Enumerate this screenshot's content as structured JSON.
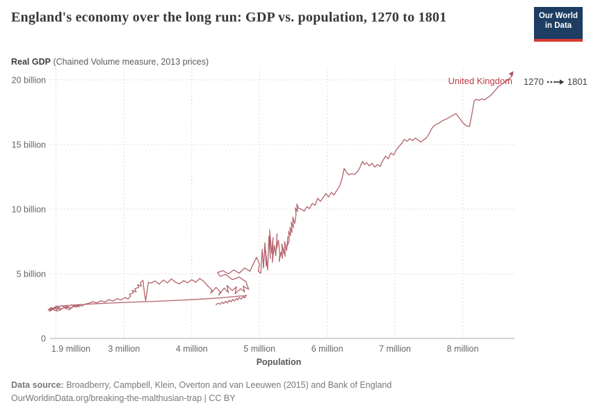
{
  "header": {
    "title": "England's economy over the long run: GDP vs. population, 1270 to 1801",
    "subtitle_bold": "Real GDP",
    "subtitle_rest": " (Chained Volume measure, 2013 prices)",
    "logo_line1": "Our World",
    "logo_line2": "in Data"
  },
  "timeline": {
    "start": "1270",
    "end": "1801"
  },
  "footer": {
    "source_label": "Data source:",
    "source_text": " Broadberry, Campbell, Klein, Overton and van Leeuwen (2015) and Bank of England",
    "link": "OurWorldinData.org/breaking-the-malthusian-trap",
    "license": " | CC BY"
  },
  "colors": {
    "line": "#a4454f",
    "entity_label": "#c23c46",
    "logo_bg": "#1d3d63",
    "logo_red": "#d93a34",
    "grid": "#dcdcdc",
    "axis_text": "#666666",
    "axis_line": "#a8a8a8"
  },
  "chart_data": {
    "type": "line",
    "title": "England's economy over the long run: GDP vs. population, 1270 to 1801",
    "xlabel": "Population",
    "ylabel": "Real GDP (Chained Volume measure, 2013 prices)",
    "x_unit": "million people",
    "y_unit": "billion (2013 prices)",
    "xlim": [
      1.8,
      8.9
    ],
    "ylim": [
      0,
      20
    ],
    "grid": true,
    "legend_position": "end-of-line-label",
    "x_ticks": [
      {
        "value": 1.9,
        "label": "1.9 million"
      },
      {
        "value": 3,
        "label": "3 million"
      },
      {
        "value": 4,
        "label": "4 million"
      },
      {
        "value": 5,
        "label": "5 million"
      },
      {
        "value": 6,
        "label": "6 million"
      },
      {
        "value": 7,
        "label": "7 million"
      },
      {
        "value": 8,
        "label": "8 million"
      }
    ],
    "y_ticks": [
      {
        "value": 0,
        "label": "0"
      },
      {
        "value": 5,
        "label": "5 billion"
      },
      {
        "value": 10,
        "label": "10 billion"
      },
      {
        "value": 15,
        "label": "15 billion"
      },
      {
        "value": 20,
        "label": "20 billion"
      }
    ],
    "series": [
      {
        "name": "United Kingdom",
        "start_year": 1270,
        "end_year": 1801,
        "points": [
          [
            4.36,
            2.62
          ],
          [
            4.39,
            2.73
          ],
          [
            4.42,
            2.65
          ],
          [
            4.45,
            2.82
          ],
          [
            4.47,
            2.7
          ],
          [
            4.5,
            2.88
          ],
          [
            4.53,
            2.75
          ],
          [
            4.55,
            2.95
          ],
          [
            4.58,
            2.83
          ],
          [
            4.6,
            3.02
          ],
          [
            4.63,
            2.9
          ],
          [
            4.66,
            3.1
          ],
          [
            4.68,
            2.98
          ],
          [
            4.7,
            3.18
          ],
          [
            4.73,
            3.05
          ],
          [
            4.76,
            3.25
          ],
          [
            4.78,
            3.12
          ],
          [
            4.8,
            3.35
          ],
          [
            4.81,
            3.3
          ],
          [
            4.7,
            3.28
          ],
          [
            4.45,
            3.15
          ],
          [
            4.15,
            3.05
          ],
          [
            3.8,
            2.95
          ],
          [
            3.45,
            2.87
          ],
          [
            3.1,
            2.8
          ],
          [
            2.8,
            2.74
          ],
          [
            2.55,
            2.68
          ],
          [
            2.35,
            2.62
          ],
          [
            2.15,
            2.55
          ],
          [
            2.0,
            2.48
          ],
          [
            1.95,
            2.35
          ],
          [
            1.88,
            2.2
          ],
          [
            1.93,
            2.42
          ],
          [
            1.9,
            2.1
          ],
          [
            1.97,
            2.3
          ],
          [
            1.92,
            2.18
          ],
          [
            2.0,
            2.45
          ],
          [
            1.94,
            2.25
          ],
          [
            2.02,
            2.12
          ],
          [
            1.98,
            2.38
          ],
          [
            2.05,
            2.22
          ],
          [
            2.0,
            2.5
          ],
          [
            2.08,
            2.3
          ],
          [
            2.04,
            2.15
          ],
          [
            2.12,
            2.4
          ],
          [
            2.08,
            2.55
          ],
          [
            2.15,
            2.28
          ],
          [
            2.11,
            2.45
          ],
          [
            2.18,
            2.33
          ],
          [
            2.14,
            2.52
          ],
          [
            2.22,
            2.38
          ],
          [
            2.18,
            2.2
          ],
          [
            2.26,
            2.48
          ],
          [
            2.22,
            2.6
          ],
          [
            2.3,
            2.42
          ],
          [
            2.26,
            2.55
          ],
          [
            2.34,
            2.45
          ],
          [
            2.3,
            2.62
          ],
          [
            2.38,
            2.5
          ],
          [
            2.42,
            2.65
          ],
          [
            2.48,
            2.72
          ],
          [
            2.54,
            2.85
          ],
          [
            2.6,
            2.76
          ],
          [
            2.66,
            2.92
          ],
          [
            2.72,
            2.82
          ],
          [
            2.78,
            3.0
          ],
          [
            2.84,
            2.9
          ],
          [
            2.9,
            3.08
          ],
          [
            2.96,
            2.98
          ],
          [
            3.02,
            3.18
          ],
          [
            3.06,
            3.05
          ],
          [
            3.1,
            3.28
          ],
          [
            3.08,
            3.4
          ],
          [
            3.14,
            3.55
          ],
          [
            3.12,
            3.72
          ],
          [
            3.18,
            3.6
          ],
          [
            3.16,
            3.85
          ],
          [
            3.22,
            3.95
          ],
          [
            3.2,
            4.15
          ],
          [
            3.26,
            4.05
          ],
          [
            3.24,
            4.3
          ],
          [
            3.28,
            4.5
          ],
          [
            3.3,
            3.6
          ],
          [
            3.32,
            2.92
          ],
          [
            3.36,
            4.35
          ],
          [
            3.4,
            4.28
          ],
          [
            3.46,
            4.45
          ],
          [
            3.52,
            4.2
          ],
          [
            3.58,
            4.52
          ],
          [
            3.64,
            4.3
          ],
          [
            3.7,
            4.6
          ],
          [
            3.76,
            4.35
          ],
          [
            3.82,
            4.22
          ],
          [
            3.88,
            4.48
          ],
          [
            3.94,
            4.3
          ],
          [
            4.0,
            4.55
          ],
          [
            4.06,
            4.35
          ],
          [
            4.12,
            4.65
          ],
          [
            4.18,
            4.4
          ],
          [
            4.24,
            4.05
          ],
          [
            4.3,
            3.75
          ],
          [
            4.28,
            3.5
          ],
          [
            4.36,
            3.95
          ],
          [
            4.42,
            3.6
          ],
          [
            4.4,
            3.35
          ],
          [
            4.48,
            3.9
          ],
          [
            4.54,
            3.55
          ],
          [
            4.52,
            4.1
          ],
          [
            4.6,
            3.7
          ],
          [
            4.66,
            4.0
          ],
          [
            4.64,
            3.45
          ],
          [
            4.72,
            3.85
          ],
          [
            4.78,
            3.6
          ],
          [
            4.76,
            4.05
          ],
          [
            4.84,
            3.8
          ],
          [
            4.8,
            4.4
          ],
          [
            4.7,
            4.75
          ],
          [
            4.6,
            4.55
          ],
          [
            4.5,
            4.95
          ],
          [
            4.42,
            4.8
          ],
          [
            4.38,
            5.1
          ],
          [
            4.46,
            5.25
          ],
          [
            4.54,
            5.0
          ],
          [
            4.62,
            5.3
          ],
          [
            4.7,
            5.05
          ],
          [
            4.78,
            5.45
          ],
          [
            4.86,
            5.2
          ],
          [
            4.92,
            5.9
          ],
          [
            4.96,
            6.28
          ],
          [
            5.0,
            5.75
          ],
          [
            4.98,
            5.2
          ],
          [
            5.02,
            5.05
          ],
          [
            5.04,
            6.9
          ],
          [
            5.06,
            5.45
          ],
          [
            5.08,
            7.4
          ],
          [
            5.1,
            5.6
          ],
          [
            5.09,
            6.8
          ],
          [
            5.12,
            5.3
          ],
          [
            5.14,
            7.9
          ],
          [
            5.16,
            6.2
          ],
          [
            5.15,
            8.4
          ],
          [
            5.18,
            6.6
          ],
          [
            5.2,
            7.8
          ],
          [
            5.19,
            5.9
          ],
          [
            5.22,
            7.2
          ],
          [
            5.24,
            6.4
          ],
          [
            5.26,
            8.1
          ],
          [
            5.25,
            6.9
          ],
          [
            5.28,
            7.6
          ],
          [
            5.3,
            6.5
          ],
          [
            5.29,
            5.95
          ],
          [
            5.32,
            6.7
          ],
          [
            5.34,
            6.2
          ],
          [
            5.33,
            7.3
          ],
          [
            5.36,
            6.6
          ],
          [
            5.35,
            7.0
          ],
          [
            5.38,
            6.35
          ],
          [
            5.37,
            7.5
          ],
          [
            5.4,
            6.8
          ],
          [
            5.42,
            7.9
          ],
          [
            5.41,
            7.15
          ],
          [
            5.44,
            7.6
          ],
          [
            5.43,
            8.3
          ],
          [
            5.46,
            7.95
          ],
          [
            5.45,
            8.6
          ],
          [
            5.48,
            8.2
          ],
          [
            5.47,
            9.0
          ],
          [
            5.5,
            8.55
          ],
          [
            5.49,
            9.4
          ],
          [
            5.52,
            8.9
          ],
          [
            5.54,
            9.6
          ],
          [
            5.53,
            10.1
          ],
          [
            5.56,
            9.8
          ],
          [
            5.55,
            10.4
          ],
          [
            5.58,
            10.05
          ],
          [
            5.62,
            10.0
          ],
          [
            5.66,
            9.85
          ],
          [
            5.7,
            10.2
          ],
          [
            5.74,
            10.05
          ],
          [
            5.78,
            10.45
          ],
          [
            5.82,
            10.3
          ],
          [
            5.86,
            10.85
          ],
          [
            5.9,
            10.6
          ],
          [
            5.94,
            10.9
          ],
          [
            5.98,
            11.2
          ],
          [
            6.02,
            10.95
          ],
          [
            6.06,
            11.3
          ],
          [
            6.1,
            11.1
          ],
          [
            6.14,
            11.45
          ],
          [
            6.18,
            11.75
          ],
          [
            6.22,
            12.4
          ],
          [
            6.25,
            13.15
          ],
          [
            6.28,
            12.9
          ],
          [
            6.32,
            12.65
          ],
          [
            6.36,
            12.75
          ],
          [
            6.4,
            12.7
          ],
          [
            6.44,
            12.85
          ],
          [
            6.48,
            13.2
          ],
          [
            6.52,
            13.7
          ],
          [
            6.55,
            13.45
          ],
          [
            6.58,
            13.6
          ],
          [
            6.62,
            13.35
          ],
          [
            6.66,
            13.55
          ],
          [
            6.7,
            13.25
          ],
          [
            6.74,
            13.45
          ],
          [
            6.78,
            13.3
          ],
          [
            6.82,
            13.75
          ],
          [
            6.86,
            14.1
          ],
          [
            6.9,
            13.9
          ],
          [
            6.94,
            14.35
          ],
          [
            6.98,
            14.2
          ],
          [
            7.02,
            14.6
          ],
          [
            7.06,
            14.85
          ],
          [
            7.1,
            15.1
          ],
          [
            7.14,
            15.4
          ],
          [
            7.18,
            15.25
          ],
          [
            7.22,
            15.45
          ],
          [
            7.26,
            15.3
          ],
          [
            7.3,
            15.5
          ],
          [
            7.34,
            15.35
          ],
          [
            7.38,
            15.2
          ],
          [
            7.42,
            15.35
          ],
          [
            7.46,
            15.5
          ],
          [
            7.5,
            15.8
          ],
          [
            7.55,
            16.3
          ],
          [
            7.6,
            16.55
          ],
          [
            7.65,
            16.65
          ],
          [
            7.7,
            16.85
          ],
          [
            7.75,
            16.95
          ],
          [
            7.8,
            17.1
          ],
          [
            7.85,
            17.25
          ],
          [
            7.9,
            17.4
          ],
          [
            7.95,
            17.05
          ],
          [
            8.0,
            16.7
          ],
          [
            8.05,
            16.45
          ],
          [
            8.1,
            16.4
          ],
          [
            8.14,
            17.5
          ],
          [
            8.17,
            18.4
          ],
          [
            8.2,
            18.5
          ],
          [
            8.24,
            18.42
          ],
          [
            8.28,
            18.55
          ],
          [
            8.32,
            18.45
          ],
          [
            8.36,
            18.6
          ],
          [
            8.4,
            18.75
          ],
          [
            8.44,
            18.95
          ],
          [
            8.48,
            19.2
          ],
          [
            8.52,
            19.45
          ],
          [
            8.56,
            19.6
          ],
          [
            8.6,
            19.75
          ],
          [
            8.63,
            19.85
          ],
          [
            8.66,
            20.0
          ]
        ]
      }
    ]
  }
}
